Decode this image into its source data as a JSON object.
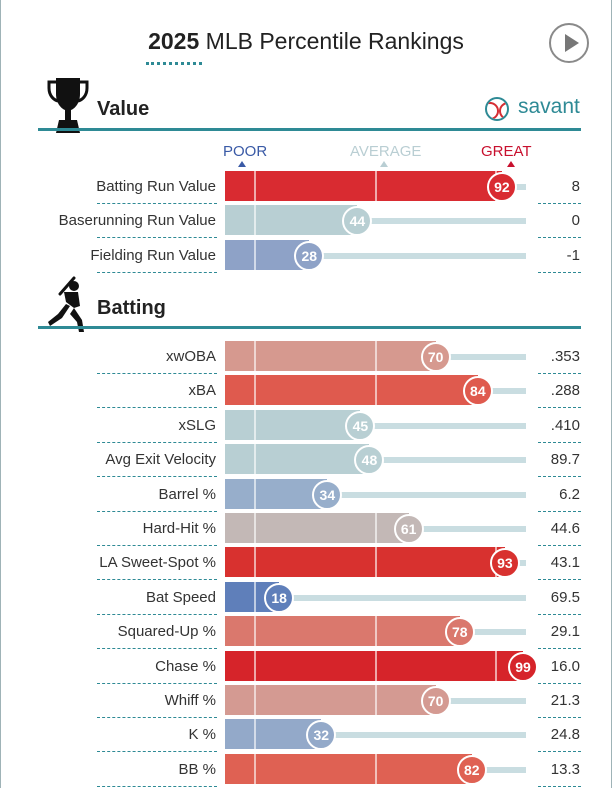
{
  "header": {
    "title_year": "2025",
    "title_rest": " MLB Percentile Rankings",
    "brand": "savant",
    "play_icon": "play-icon"
  },
  "scale": {
    "poor": "POOR",
    "average": "AVERAGE",
    "great": "GREAT",
    "poor_color": "#3a5aa6",
    "average_color": "#b9ced3",
    "great_color": "#c8102e"
  },
  "sections": [
    {
      "title": "Value",
      "icon": "trophy-icon"
    },
    {
      "title": "Batting",
      "icon": "batter-icon"
    }
  ],
  "chart_data": {
    "type": "bar",
    "title": "2025 MLB Percentile Rankings",
    "xlim": [
      0,
      100
    ],
    "orientation": "horizontal",
    "groups": [
      {
        "name": "Value",
        "rows": [
          {
            "label": "Batting Run Value",
            "percentile": 92,
            "value": "8",
            "color": "#d92b31"
          },
          {
            "label": "Baserunning Run Value",
            "percentile": 44,
            "value": "0",
            "color": "#b8cfd3"
          },
          {
            "label": "Fielding Run Value",
            "percentile": 28,
            "value": "-1",
            "color": "#8ea2c7"
          }
        ]
      },
      {
        "name": "Batting",
        "rows": [
          {
            "label": "xwOBA",
            "percentile": 70,
            "value": ".353",
            "color": "#d6998f"
          },
          {
            "label": "xBA",
            "percentile": 84,
            "value": ".288",
            "color": "#df5a4e"
          },
          {
            "label": "xSLG",
            "percentile": 45,
            "value": ".410",
            "color": "#b8cfd3"
          },
          {
            "label": "Avg Exit Velocity",
            "percentile": 48,
            "value": "89.7",
            "color": "#b8cfd3"
          },
          {
            "label": "Barrel %",
            "percentile": 34,
            "value": "6.2",
            "color": "#97aecb"
          },
          {
            "label": "Hard-Hit %",
            "percentile": 61,
            "value": "44.6",
            "color": "#c3b8b6"
          },
          {
            "label": "LA Sweet-Spot %",
            "percentile": 93,
            "value": "43.1",
            "color": "#d8312f"
          },
          {
            "label": "Bat Speed",
            "percentile": 18,
            "value": "69.5",
            "color": "#5f7fba"
          },
          {
            "label": "Squared-Up %",
            "percentile": 78,
            "value": "29.1",
            "color": "#da786d"
          },
          {
            "label": "Chase %",
            "percentile": 99,
            "value": "16.0",
            "color": "#d6242a"
          },
          {
            "label": "Whiff %",
            "percentile": 70,
            "value": "21.3",
            "color": "#d49a92"
          },
          {
            "label": "K %",
            "percentile": 32,
            "value": "24.8",
            "color": "#93a9c9"
          },
          {
            "label": "BB %",
            "percentile": 82,
            "value": "13.3",
            "color": "#df6153"
          }
        ]
      }
    ]
  }
}
